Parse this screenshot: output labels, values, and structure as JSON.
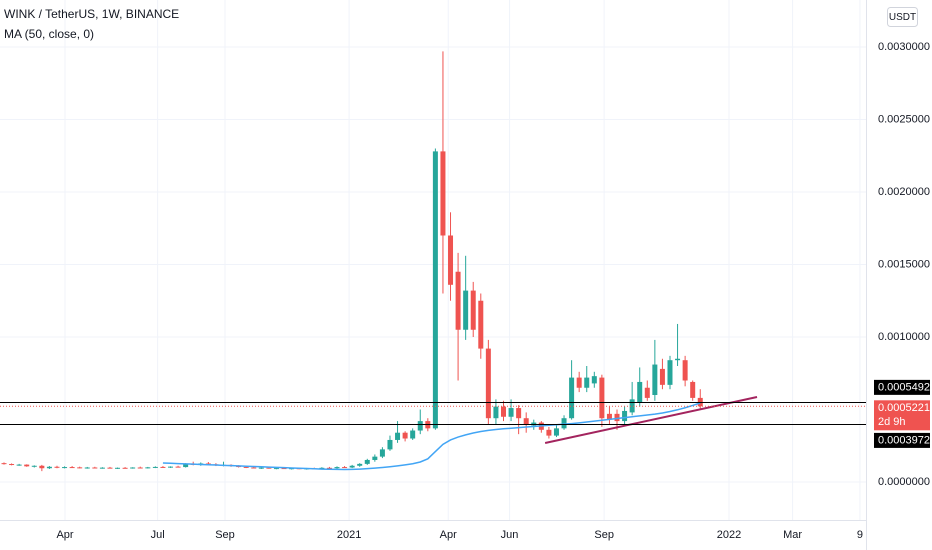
{
  "chart_data": {
    "type": "candlestick",
    "title": "WINK / TetherUS, 1W, BINANCE",
    "currency": "USDT",
    "up_color": "#26a69a",
    "down_color": "#ef5350",
    "grid": true,
    "categories": [
      null,
      null,
      null,
      null,
      null,
      null,
      null,
      null,
      null,
      null,
      null,
      null,
      null,
      null,
      null,
      null,
      null,
      null,
      null,
      null,
      null,
      null,
      null,
      null,
      null,
      null,
      null,
      null,
      null,
      null,
      null,
      null,
      null,
      null,
      null,
      null,
      null,
      null,
      null,
      null,
      null,
      null,
      null,
      null,
      null,
      null,
      null,
      null,
      null,
      null,
      null,
      null,
      null,
      null,
      null,
      null,
      null,
      null,
      null,
      null,
      null,
      null,
      null,
      null,
      null,
      null,
      null,
      null,
      null,
      null,
      null,
      null,
      null,
      null,
      null,
      null,
      null,
      null,
      null,
      null,
      null,
      null,
      null,
      null,
      null,
      null,
      null,
      null,
      null,
      null,
      null,
      null,
      null
    ],
    "open": [
      0.00013,
      0.000124,
      0.000118,
      0.00012,
      0.000108,
      0.000112,
      9.5e-05,
      0.000105,
      0.0001,
      0.000103,
      0.000101,
      9.8e-05,
      0.0001,
      9.7e-05,
      9.9e-05,
      9.6e-05,
      9.8e-05,
      9.7e-05,
      0.0001,
      9.8e-05,
      0.000101,
      0.000104,
      0.000102,
      0.000106,
      0.000103,
      0.000125,
      0.00012,
      0.000128,
      0.000122,
      0.000115,
      0.000118,
      0.00011,
      0.000104,
      0.0001,
      9.7e-05,
      9.9e-05,
      9.4e-05,
      9.6e-05,
      9.3e-05,
      9.5e-05,
      9.1e-05,
      9.4e-05,
      9e-05,
      9.8e-05,
      9.5e-05,
      0.000103,
      0.0001,
      0.000112,
      0.000125,
      0.000152,
      0.000175,
      0.000225,
      0.00029,
      0.00034,
      0.0003,
      0.000355,
      0.00042,
      0.00037,
      0.00228,
      0.0017,
      0.00145,
      0.00105,
      0.00132,
      0.00125,
      0.00092,
      0.00044,
      0.00052,
      0.00045,
      0.00051,
      0.00044,
      0.00039,
      0.00041,
      0.00036,
      0.00032,
      0.00037,
      0.00044,
      0.00072,
      0.00065,
      0.00068,
      0.00072,
      0.00047,
      0.00047,
      0.00042,
      0.00048,
      0.00055,
      0.00065,
      0.0006,
      0.00078,
      0.00067,
      0.00084,
      0.00084,
      0.00069,
      0.00058
    ],
    "high": [
      0.000135,
      0.000128,
      0.000125,
      0.000122,
      0.000115,
      0.000118,
      0.00011,
      0.000112,
      0.000108,
      0.00011,
      0.000106,
      0.000104,
      0.000105,
      0.000102,
      0.000104,
      0.0001,
      0.000103,
      0.000102,
      0.000106,
      0.000104,
      0.000108,
      0.00011,
      0.000108,
      0.000112,
      0.00013,
      0.00014,
      0.000135,
      0.000138,
      0.00013,
      0.00014,
      0.000122,
      0.000116,
      0.00011,
      0.000106,
      0.000104,
      0.000104,
      0.0001,
      0.000102,
      9.8e-05,
      0.0001,
      9.7e-05,
      9.9e-05,
      0.000102,
      0.000104,
      0.000108,
      0.00011,
      0.000118,
      0.00013,
      0.00016,
      0.00019,
      0.00024,
      0.00032,
      0.00042,
      0.00035,
      0.00037,
      0.0005,
      0.00044,
      0.0023,
      0.00297,
      0.00186,
      0.00158,
      0.00156,
      0.00138,
      0.0013,
      0.00098,
      0.00057,
      0.00056,
      0.00057,
      0.00053,
      0.00048,
      0.00043,
      0.00042,
      0.00038,
      0.00039,
      0.00046,
      0.00084,
      0.00076,
      0.0008,
      0.00076,
      0.00074,
      0.00052,
      0.0005,
      0.00052,
      0.00069,
      0.00079,
      0.0007,
      0.00098,
      0.00085,
      0.00087,
      0.00109,
      0.00087,
      0.0007,
      0.00064
    ],
    "low": [
      0.00012,
      0.000115,
      0.000112,
      0.000105,
      0.0001,
      7.5e-05,
      9e-05,
      9.5e-05,
      9.4e-05,
      9.8e-05,
      9.4e-05,
      9.2e-05,
      9.5e-05,
      9.2e-05,
      9.4e-05,
      9e-05,
      9.3e-05,
      9.2e-05,
      9.5e-05,
      9.3e-05,
      9.6e-05,
      9.8e-05,
      9.7e-05,
      0.0001,
      0.0001,
      0.000115,
      0.000112,
      0.000118,
      0.00011,
      0.000108,
      0.000105,
      0.0001,
      9.6e-05,
      9.4e-05,
      9e-05,
      9.2e-05,
      8.8e-05,
      9e-05,
      8.6e-05,
      8.8e-05,
      8.5e-05,
      8.7e-05,
      8.6e-05,
      9.2e-05,
      9e-05,
      9.7e-05,
      9.6e-05,
      0.000105,
      0.000118,
      0.00014,
      0.000165,
      0.000215,
      0.00027,
      0.00028,
      0.00029,
      0.00033,
      0.00035,
      0.00036,
      0.0013,
      0.00125,
      0.0007,
      0.00098,
      0.001,
      0.00085,
      0.0004,
      0.0004,
      0.00042,
      0.00042,
      0.00033,
      0.00034,
      0.00036,
      0.00034,
      0.0003,
      0.00031,
      0.00036,
      0.00043,
      0.00062,
      0.00062,
      0.00065,
      0.00038,
      0.0004,
      0.00036,
      0.0004,
      0.00046,
      0.00052,
      0.00056,
      0.00056,
      0.00064,
      0.00064,
      0.0008,
      0.00066,
      0.00056,
      0.0005
    ],
    "close": [
      0.000124,
      0.000118,
      0.00012,
      0.000108,
      0.000112,
      9.5e-05,
      0.000105,
      0.0001,
      0.000103,
      0.000101,
      9.8e-05,
      0.0001,
      9.7e-05,
      9.9e-05,
      9.6e-05,
      9.8e-05,
      9.7e-05,
      0.0001,
      9.8e-05,
      0.000101,
      0.000104,
      0.000102,
      0.000106,
      0.000103,
      0.000125,
      0.00012,
      0.000128,
      0.000122,
      0.000115,
      0.000118,
      0.00011,
      0.000104,
      0.0001,
      9.7e-05,
      9.9e-05,
      9.4e-05,
      9.6e-05,
      9.3e-05,
      9.5e-05,
      9.1e-05,
      9.4e-05,
      9e-05,
      9.8e-05,
      9.5e-05,
      0.000103,
      0.0001,
      0.000112,
      0.000125,
      0.000152,
      0.000175,
      0.000225,
      0.00029,
      0.00034,
      0.0003,
      0.000355,
      0.00042,
      0.00037,
      0.00228,
      0.0017,
      0.00136,
      0.00105,
      0.00132,
      0.00105,
      0.00092,
      0.00044,
      0.00052,
      0.00045,
      0.00051,
      0.00044,
      0.0004,
      0.00041,
      0.00036,
      0.00032,
      0.00037,
      0.00044,
      0.00072,
      0.00065,
      0.00072,
      0.00073,
      0.00044,
      0.00043,
      0.00042,
      0.00049,
      0.00057,
      0.00069,
      0.00058,
      0.00081,
      0.00067,
      0.00084,
      0.00085,
      0.0007,
      0.00058,
      0.0005221
    ],
    "series": [
      {
        "name": "MA (50, close, 0)",
        "color": "#42a5f5",
        "values": [
          null,
          null,
          null,
          null,
          null,
          null,
          null,
          null,
          null,
          null,
          null,
          null,
          null,
          null,
          null,
          null,
          null,
          null,
          null,
          null,
          null,
          0.000131,
          0.000129,
          0.000127,
          0.000125,
          0.000123,
          0.000121,
          0.000119,
          0.000117,
          0.000115,
          0.000113,
          0.000111,
          0.000109,
          0.000107,
          0.000105,
          0.000103,
          0.000101,
          9.9e-05,
          9.7e-05,
          9.5e-05,
          9.3e-05,
          9.1e-05,
          8.9e-05,
          8.8e-05,
          8.7e-05,
          8.6e-05,
          8.7e-05,
          8.9e-05,
          9.2e-05,
          9.6e-05,
          0.0001,
          0.000105,
          0.000111,
          0.000118,
          0.000126,
          0.000138,
          0.00016,
          0.00021,
          0.00026,
          0.00029,
          0.00031,
          0.000325,
          0.000338,
          0.000348,
          0.000356,
          0.000362,
          0.000367,
          0.000371,
          0.000375,
          0.000379,
          0.000383,
          0.000387,
          0.000391,
          0.000395,
          0.000399,
          0.000403,
          0.000408,
          0.000414,
          0.00042,
          0.000426,
          0.000432,
          0.000438,
          0.000444,
          0.00045,
          0.000456,
          0.000462,
          0.000468,
          0.000476,
          0.000486,
          0.000498,
          0.000512,
          0.000528,
          0.000545
        ]
      }
    ],
    "levels": [
      0.0005492,
      0.0003972
    ],
    "last_price": 0.0005221,
    "countdown": "2d 9h",
    "trendline": {
      "x": [
        71.5,
        99.5
      ],
      "y": [
        0.000269,
        0.000586
      ],
      "color": "#a3245e"
    },
    "xlim": [
      -0.53,
      113.9
    ],
    "ylim": [
      -0.000262,
      0.003324
    ],
    "xticks": [
      {
        "value": 8.06,
        "label": "Apr"
      },
      {
        "value": 20.3,
        "label": "Jul"
      },
      {
        "value": 29.2,
        "label": "Sep"
      },
      {
        "value": 45.6,
        "label": "2021"
      },
      {
        "value": 58.7,
        "label": "Apr"
      },
      {
        "value": 66.8,
        "label": "Jun"
      },
      {
        "value": 79.3,
        "label": "Sep"
      },
      {
        "value": 95.8,
        "label": "2022"
      },
      {
        "value": 104.2,
        "label": "Mar"
      },
      {
        "value": 113.1,
        "label": "9"
      }
    ],
    "yticks": [
      {
        "value": 0.003,
        "label": "0.0030000"
      },
      {
        "value": 0.0025,
        "label": "0.0025000"
      },
      {
        "value": 0.002,
        "label": "0.0020000"
      },
      {
        "value": 0.0015,
        "label": "0.0015000"
      },
      {
        "value": 0.001,
        "label": "0.0010000"
      },
      {
        "value": 0,
        "label": "0.0000000"
      }
    ]
  }
}
